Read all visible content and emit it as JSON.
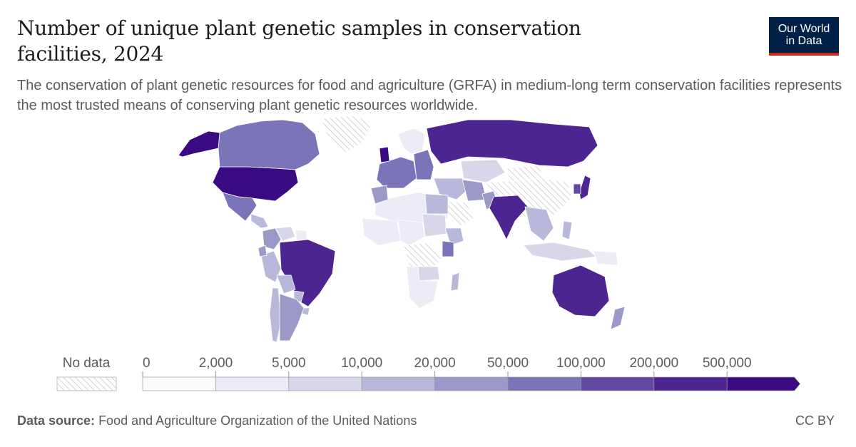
{
  "header": {
    "title": "Number of unique plant genetic samples in conservation facilities, 2024",
    "subtitle": "The conservation of plant genetic resources for food and agriculture (GRFA) in medium-long term conservation facilities represents the most trusted means of conserving plant genetic resources worldwide."
  },
  "logo": {
    "line1": "Our World",
    "line2": "in Data",
    "bg_color": "#002147",
    "accent_color": "#ce261e"
  },
  "legend": {
    "no_data_label": "No data",
    "tick_labels": [
      "0",
      "2,000",
      "5,000",
      "10,000",
      "20,000",
      "50,000",
      "100,000",
      "200,000",
      "500,000"
    ],
    "bin_colors": [
      "#fbfbfd",
      "#ecebf6",
      "#d7d7e9",
      "#b8b8da",
      "#9c98c8",
      "#7b74b8",
      "#6349a2",
      "#4d2590",
      "#3a0a82"
    ]
  },
  "map": {
    "no_data_pattern": "hatched-gray",
    "regions": [
      {
        "name": "United States",
        "bin": 8
      },
      {
        "name": "Canada",
        "bin": 5
      },
      {
        "name": "Alaska",
        "bin": 8
      },
      {
        "name": "Greenland",
        "bin": -1
      },
      {
        "name": "Mexico",
        "bin": 5
      },
      {
        "name": "Central America",
        "bin": 3
      },
      {
        "name": "Colombia",
        "bin": 4
      },
      {
        "name": "Venezuela",
        "bin": 2
      },
      {
        "name": "Guianas",
        "bin": 1
      },
      {
        "name": "Brazil",
        "bin": 7
      },
      {
        "name": "Peru",
        "bin": 3
      },
      {
        "name": "Ecuador",
        "bin": 4
      },
      {
        "name": "Bolivia",
        "bin": 3
      },
      {
        "name": "Paraguay",
        "bin": 3
      },
      {
        "name": "Uruguay",
        "bin": 3
      },
      {
        "name": "Chile",
        "bin": 3
      },
      {
        "name": "Argentina",
        "bin": 4
      },
      {
        "name": "Europe West",
        "bin": 5
      },
      {
        "name": "United Kingdom",
        "bin": 8
      },
      {
        "name": "Scandinavia",
        "bin": 1
      },
      {
        "name": "Europe East",
        "bin": 5
      },
      {
        "name": "Russia",
        "bin": 7
      },
      {
        "name": "Kazakhstan",
        "bin": 2
      },
      {
        "name": "Mongolia",
        "bin": -1
      },
      {
        "name": "China",
        "bin": -1
      },
      {
        "name": "Middle East",
        "bin": 3
      },
      {
        "name": "Iran",
        "bin": 4
      },
      {
        "name": "Arabian Peninsula",
        "bin": -1
      },
      {
        "name": "Pakistan",
        "bin": 4
      },
      {
        "name": "India",
        "bin": 7
      },
      {
        "name": "Southeast Asia",
        "bin": 3
      },
      {
        "name": "Japan",
        "bin": 7
      },
      {
        "name": "Korea",
        "bin": 6
      },
      {
        "name": "Indonesia",
        "bin": 2
      },
      {
        "name": "Philippines",
        "bin": 3
      },
      {
        "name": "Papua New Guinea",
        "bin": 1
      },
      {
        "name": "Australia",
        "bin": 7
      },
      {
        "name": "New Zealand",
        "bin": 4
      },
      {
        "name": "North Africa",
        "bin": 1
      },
      {
        "name": "Morocco",
        "bin": 4
      },
      {
        "name": "Egypt",
        "bin": 3
      },
      {
        "name": "Sudan",
        "bin": 2
      },
      {
        "name": "Ethiopia",
        "bin": 3
      },
      {
        "name": "Kenya",
        "bin": 5
      },
      {
        "name": "West Africa",
        "bin": 1
      },
      {
        "name": "Central Africa",
        "bin": 1
      },
      {
        "name": "Congo region",
        "bin": -1
      },
      {
        "name": "Southern Africa",
        "bin": 1
      },
      {
        "name": "Zambia Zimbabwe",
        "bin": 2
      },
      {
        "name": "Madagascar",
        "bin": 3
      }
    ]
  },
  "footer": {
    "source_label": "Data source:",
    "source_text": "Food and Agriculture Organization of the United Nations",
    "license": "CC BY"
  }
}
